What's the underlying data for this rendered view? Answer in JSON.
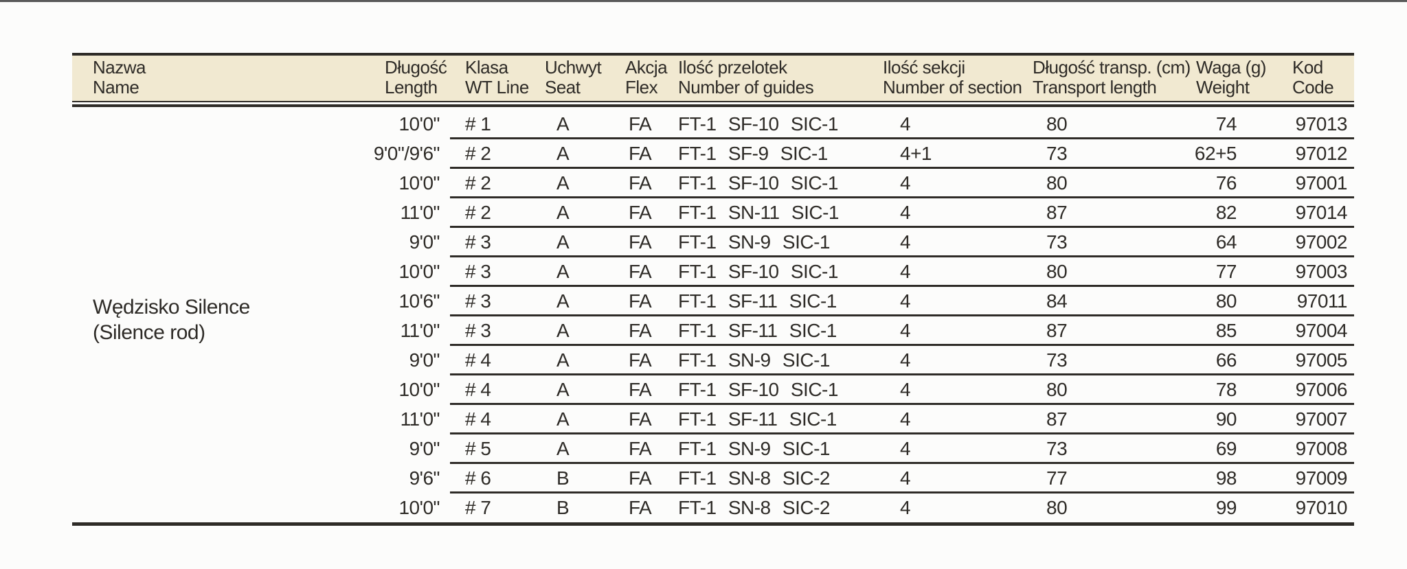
{
  "page": {
    "background": "#fcfcfb",
    "top_rule_color": "#5a5a5a"
  },
  "table": {
    "header_bg": "#f1e9d1",
    "line_color": "#2e2b27",
    "text_color": "#2e2b27",
    "columns": [
      {
        "pl": "Nazwa",
        "en": "Name"
      },
      {
        "pl": "Długość",
        "en": "Length"
      },
      {
        "pl": "Klasa",
        "en": "WT Line"
      },
      {
        "pl": "Uchwyt",
        "en": "Seat"
      },
      {
        "pl": "Akcja",
        "en": "Flex"
      },
      {
        "pl": "Ilość przelotek",
        "en": "Number of guides"
      },
      {
        "pl": "Ilość sekcji",
        "en": "Number of section"
      },
      {
        "pl": "Długość transp. (cm)",
        "en": "Transport length"
      },
      {
        "pl": "Waga (g)",
        "en": "Weight"
      },
      {
        "pl": "Kod",
        "en": "Code"
      }
    ],
    "product": {
      "name_pl": "Wędzisko Silence",
      "name_en": "(Silence rod)"
    },
    "rows": [
      {
        "length": "10'0\"",
        "wt_line": "# 1",
        "seat": "A",
        "flex": "FA",
        "guides": "FT-1 SF-10 SIC-1",
        "sections": "4",
        "transport": "80",
        "weight": "74",
        "code": "97013"
      },
      {
        "length": "9'0\"/9'6\"",
        "wt_line": "# 2",
        "seat": "A",
        "flex": "FA",
        "guides": "FT-1 SF-9 SIC-1",
        "sections": "4+1",
        "transport": "73",
        "weight": "62+5",
        "code": "97012"
      },
      {
        "length": "10'0\"",
        "wt_line": "# 2",
        "seat": "A",
        "flex": "FA",
        "guides": "FT-1 SF-10 SIC-1",
        "sections": "4",
        "transport": "80",
        "weight": "76",
        "code": "97001"
      },
      {
        "length": "11'0\"",
        "wt_line": "# 2",
        "seat": "A",
        "flex": "FA",
        "guides": "FT-1 SN-11 SIC-1",
        "sections": "4",
        "transport": "87",
        "weight": "82",
        "code": "97014"
      },
      {
        "length": "9'0\"",
        "wt_line": "# 3",
        "seat": "A",
        "flex": "FA",
        "guides": "FT-1 SN-9 SIC-1",
        "sections": "4",
        "transport": "73",
        "weight": "64",
        "code": "97002"
      },
      {
        "length": "10'0\"",
        "wt_line": "# 3",
        "seat": "A",
        "flex": "FA",
        "guides": "FT-1 SF-10 SIC-1",
        "sections": "4",
        "transport": "80",
        "weight": "77",
        "code": "97003"
      },
      {
        "length": "10'6\"",
        "wt_line": "# 3",
        "seat": "A",
        "flex": "FA",
        "guides": "FT-1 SF-11 SIC-1",
        "sections": "4",
        "transport": "84",
        "weight": "80",
        "code": "97011"
      },
      {
        "length": "11'0\"",
        "wt_line": "# 3",
        "seat": "A",
        "flex": "FA",
        "guides": "FT-1 SF-11 SIC-1",
        "sections": "4",
        "transport": "87",
        "weight": "85",
        "code": "97004"
      },
      {
        "length": "9'0\"",
        "wt_line": "# 4",
        "seat": "A",
        "flex": "FA",
        "guides": "FT-1 SN-9 SIC-1",
        "sections": "4",
        "transport": "73",
        "weight": "66",
        "code": "97005"
      },
      {
        "length": "10'0\"",
        "wt_line": "# 4",
        "seat": "A",
        "flex": "FA",
        "guides": "FT-1 SF-10 SIC-1",
        "sections": "4",
        "transport": "80",
        "weight": "78",
        "code": "97006"
      },
      {
        "length": "11'0\"",
        "wt_line": "# 4",
        "seat": "A",
        "flex": "FA",
        "guides": "FT-1 SF-11 SIC-1",
        "sections": "4",
        "transport": "87",
        "weight": "90",
        "code": "97007"
      },
      {
        "length": "9'0\"",
        "wt_line": "# 5",
        "seat": "A",
        "flex": "FA",
        "guides": "FT-1 SN-9 SIC-1",
        "sections": "4",
        "transport": "73",
        "weight": "69",
        "code": "97008"
      },
      {
        "length": "9'6\"",
        "wt_line": "# 6",
        "seat": "B",
        "flex": "FA",
        "guides": "FT-1 SN-8 SIC-2",
        "sections": "4",
        "transport": "77",
        "weight": "98",
        "code": "97009"
      },
      {
        "length": "10'0\"",
        "wt_line": "# 7",
        "seat": "B",
        "flex": "FA",
        "guides": "FT-1 SN-8 SIC-2",
        "sections": "4",
        "transport": "80",
        "weight": "99",
        "code": "97010"
      }
    ]
  }
}
